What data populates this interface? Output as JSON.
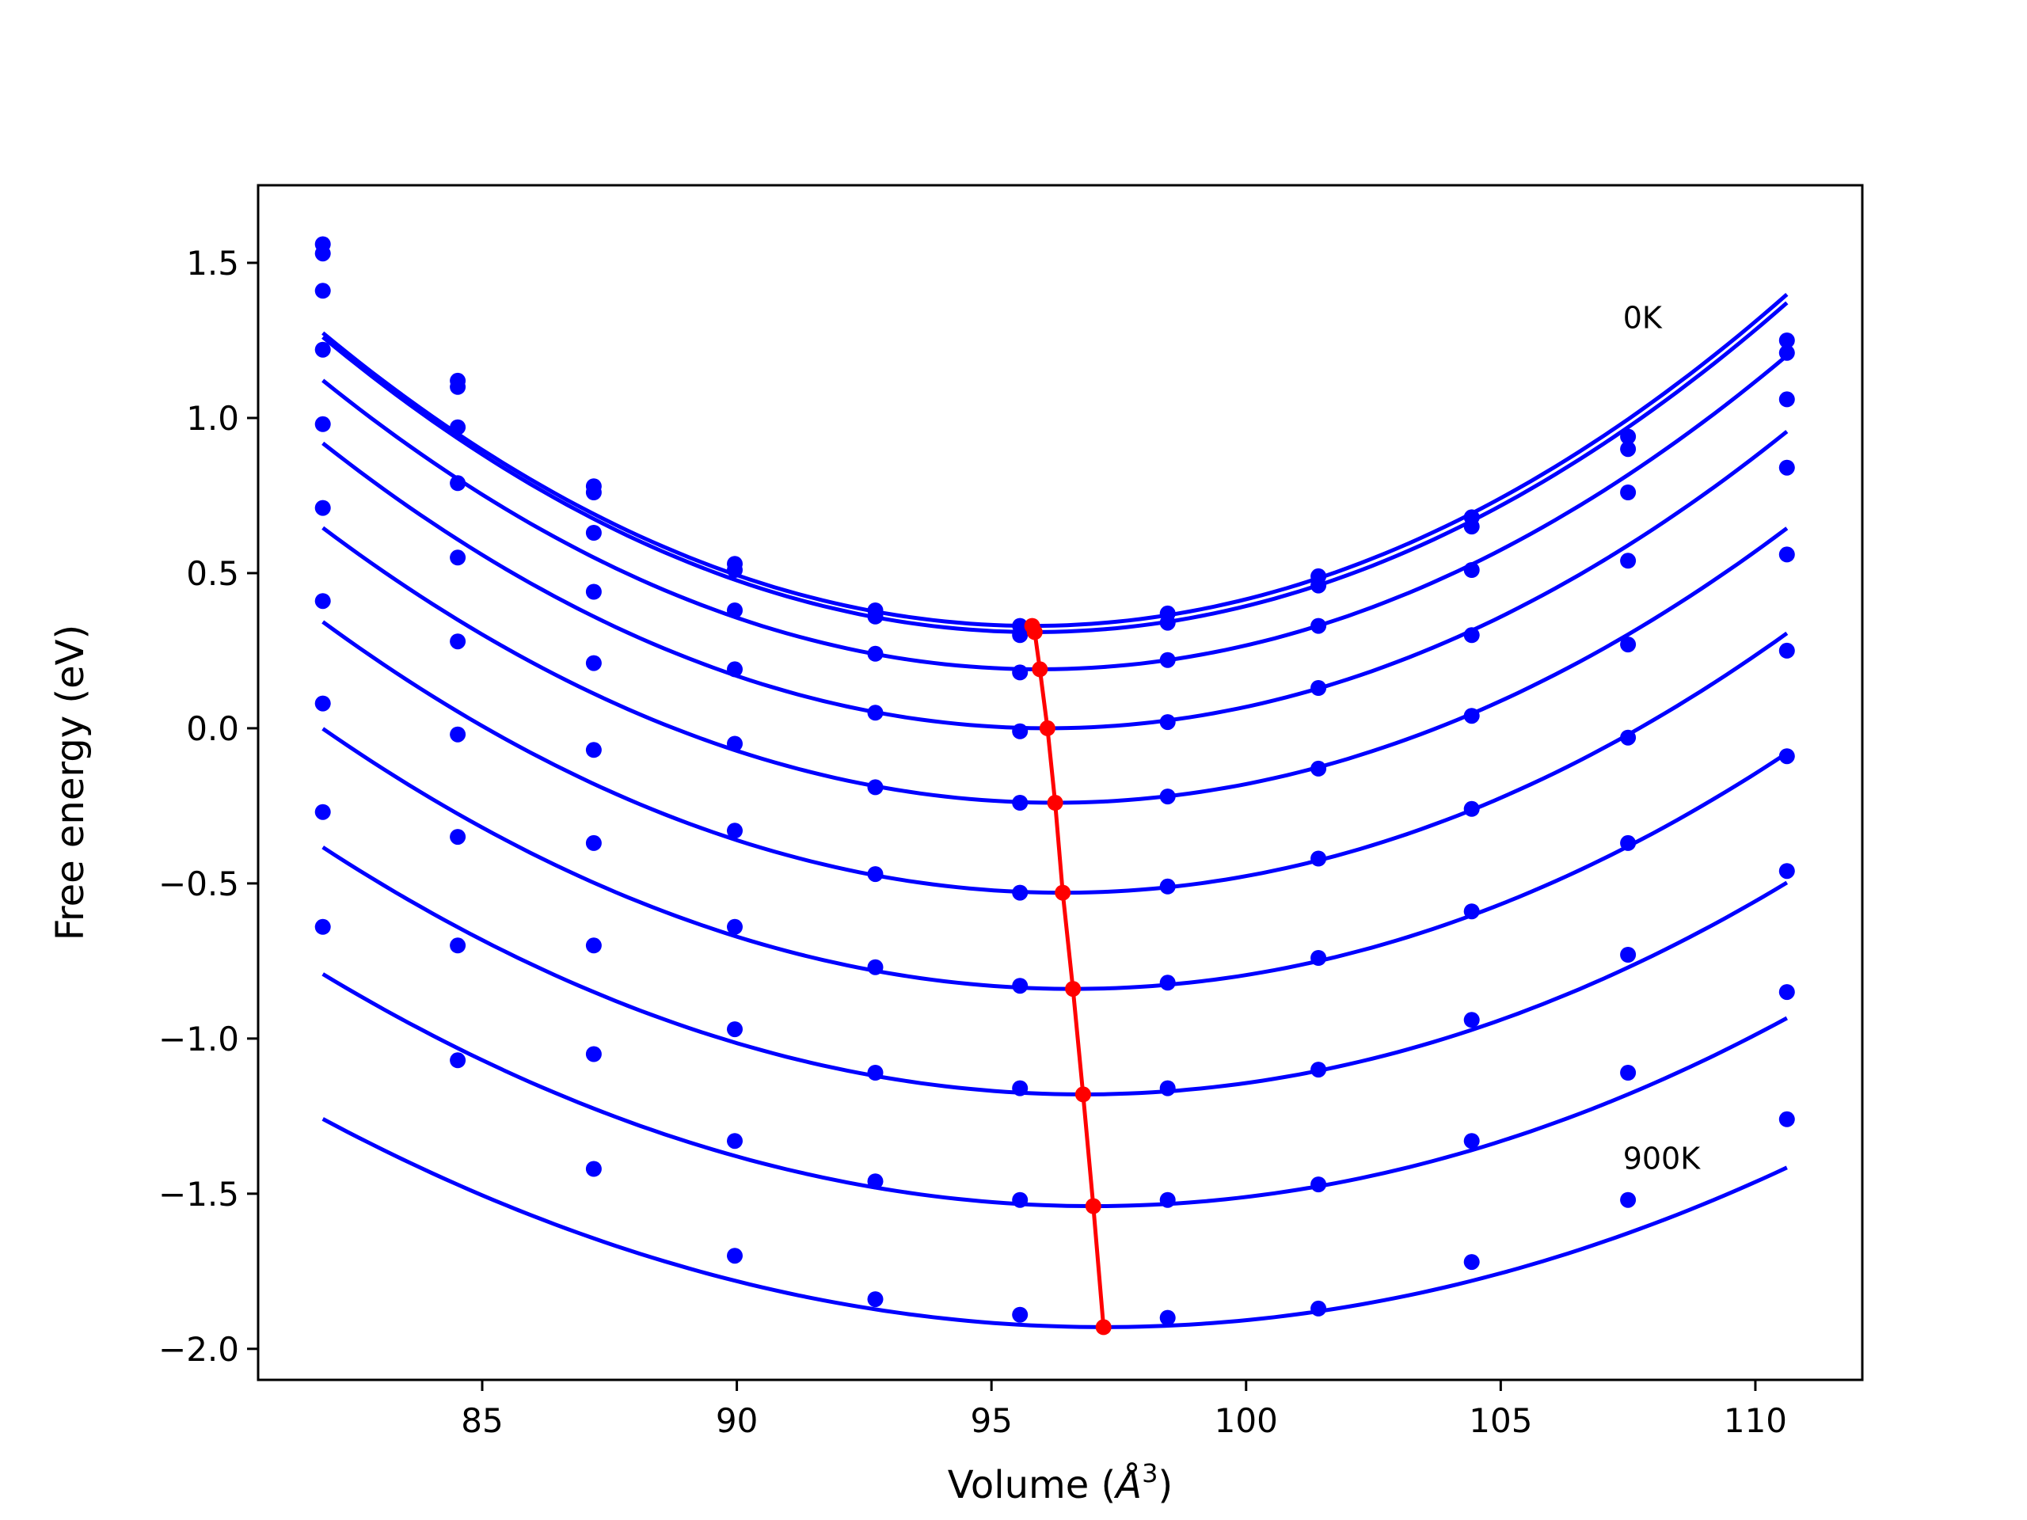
{
  "chart_data": {
    "type": "line",
    "title": "",
    "xlabel": "Volume (",
    "xlabel_unit": "Å",
    "xlabel_exp": "3",
    "xlabel_close": ")",
    "ylabel": "Free energy (eV)",
    "xlim": [
      80.6,
      112.1
    ],
    "ylim": [
      -2.1,
      1.75
    ],
    "xticks": [
      85,
      90,
      95,
      100,
      105,
      110
    ],
    "xtick_labels": [
      "85",
      "90",
      "95",
      "100",
      "105",
      "110"
    ],
    "yticks": [
      -2.0,
      -1.5,
      -1.0,
      -0.5,
      0.0,
      0.5,
      1.0,
      1.5
    ],
    "ytick_labels": [
      "−2.0",
      "−1.5",
      "−1.0",
      "−0.5",
      "0.0",
      "0.5",
      "1.0",
      "1.5"
    ],
    "grid": false,
    "colors": {
      "curves": "#0000ff",
      "minima": "#ff0000",
      "axes": "#000000"
    },
    "annotations": [
      {
        "text": "0K",
        "x": 107.4,
        "y": 1.29
      },
      {
        "text": "900K",
        "x": 107.4,
        "y": -1.42
      }
    ],
    "x": [
      81.87,
      84.52,
      87.19,
      89.96,
      92.72,
      95.56,
      98.46,
      101.42,
      104.43,
      107.5,
      110.62
    ],
    "series": [
      {
        "points": [
          1.56,
          1.12,
          0.78,
          0.53,
          0.38,
          0.33,
          0.37,
          0.49,
          0.68,
          0.94,
          1.25
        ],
        "fit": {
          "a": 0.004864,
          "xm": 95.8,
          "ym": 0.33
        }
      },
      {
        "points": [
          1.53,
          1.1,
          0.76,
          0.51,
          0.36,
          0.3,
          0.34,
          0.46,
          0.65,
          0.9,
          1.21
        ],
        "fit": {
          "a": 0.004864,
          "xm": 95.85,
          "ym": 0.31
        }
      },
      {
        "points": [
          1.41,
          0.97,
          0.63,
          0.38,
          0.24,
          0.18,
          0.22,
          0.33,
          0.51,
          0.76,
          1.06
        ],
        "fit": {
          "a": 0.004697,
          "xm": 95.95,
          "ym": 0.19
        }
      },
      {
        "points": [
          1.22,
          0.79,
          0.44,
          0.19,
          0.05,
          -0.01,
          0.02,
          0.13,
          0.3,
          0.54,
          0.84
        ],
        "fit": {
          "a": 0.004536,
          "xm": 96.1,
          "ym": 0.0
        }
      },
      {
        "points": [
          0.98,
          0.55,
          0.21,
          -0.05,
          -0.19,
          -0.24,
          -0.22,
          -0.13,
          0.04,
          0.27,
          0.56
        ],
        "fit": {
          "a": 0.004284,
          "xm": 96.25,
          "ym": -0.24
        }
      },
      {
        "points": [
          0.71,
          0.28,
          -0.07,
          -0.33,
          -0.47,
          -0.53,
          -0.51,
          -0.42,
          -0.26,
          -0.03,
          0.25
        ],
        "fit": {
          "a": 0.004135,
          "xm": 96.4,
          "ym": -0.53
        }
      },
      {
        "points": [
          0.41,
          -0.02,
          -0.37,
          -0.64,
          -0.77,
          -0.83,
          -0.82,
          -0.74,
          -0.59,
          -0.37,
          -0.09
        ],
        "fit": {
          "a": 0.003866,
          "xm": 96.6,
          "ym": -0.84
        }
      },
      {
        "points": [
          0.08,
          -0.35,
          -0.7,
          -0.97,
          -1.11,
          -1.16,
          -1.16,
          -1.1,
          -0.94,
          -0.73,
          -0.46
        ],
        "fit": {
          "a": 0.003573,
          "xm": 96.8,
          "ym": -1.18
        }
      },
      {
        "points": [
          -0.27,
          -0.7,
          -1.05,
          -1.33,
          -1.46,
          -1.52,
          -1.52,
          -1.47,
          -1.33,
          -1.11,
          -0.85
        ],
        "fit": {
          "a": 0.003267,
          "xm": 97.0,
          "ym": -1.54
        }
      },
      {
        "points": [
          -0.64,
          -1.07,
          -1.42,
          -1.7,
          -1.84,
          -1.89,
          -1.9,
          -1.87,
          -1.72,
          -1.52,
          -1.26
        ],
        "fit": {
          "a": 0.002855,
          "xm": 97.2,
          "ym": -1.93
        }
      }
    ],
    "minima": {
      "x": [
        95.8,
        95.85,
        95.95,
        96.1,
        96.25,
        96.4,
        96.6,
        96.8,
        97.0,
        97.2
      ],
      "y": [
        0.33,
        0.31,
        0.19,
        0.0,
        -0.24,
        -0.53,
        -0.84,
        -1.18,
        -1.54,
        -1.93
      ]
    }
  }
}
